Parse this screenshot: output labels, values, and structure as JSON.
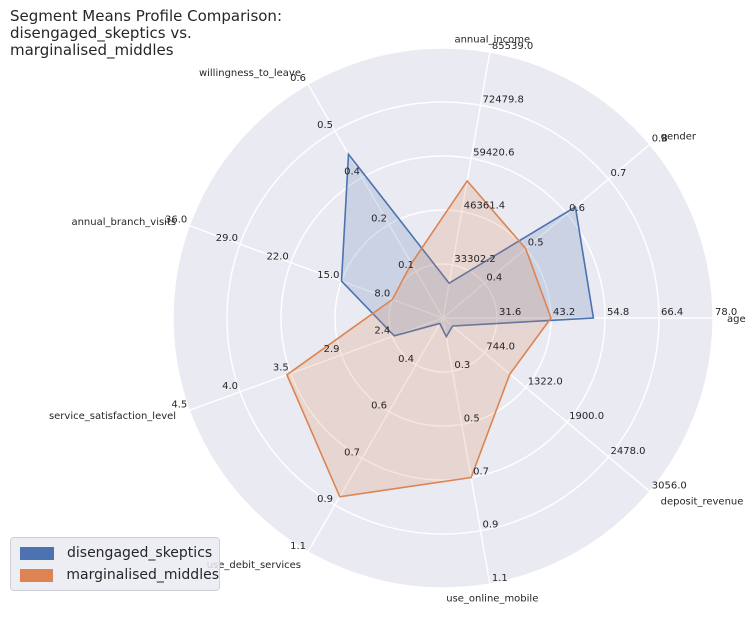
{
  "chart_data": {
    "type": "radar",
    "title": [
      "Segment Means Profile Comparison:",
      "disengaged_skeptics vs.",
      "marginalised_middles"
    ],
    "legend_position": "lower-left",
    "grid": true,
    "axes": [
      {
        "name": "age",
        "ticks": [
          "31.6",
          "43.2",
          "54.8",
          "66.4",
          "78.0"
        ],
        "range": [
          20,
          78
        ]
      },
      {
        "name": "gender",
        "ticks": [
          "0.4",
          "0.5",
          "0.6",
          "0.7",
          "0.8"
        ],
        "range": [
          0.3,
          0.8
        ]
      },
      {
        "name": "annual_income",
        "ticks": [
          "33302.2",
          "46361.4",
          "59420.6",
          "72479.8",
          "85539.0"
        ],
        "range": [
          20243,
          85539
        ]
      },
      {
        "name": "willingness_to_leave",
        "ticks": [
          "0.1",
          "0.2",
          "0.4",
          "0.5",
          "0.6"
        ],
        "range": [
          0.0,
          0.6
        ]
      },
      {
        "name": "annual_branch_visits",
        "ticks": [
          "8.0",
          "15.0",
          "22.0",
          "29.0",
          "36.0"
        ],
        "range": [
          1,
          36
        ]
      },
      {
        "name": "service_satisfaction_level",
        "ticks": [
          "2.4",
          "2.9",
          "3.5",
          "4.0",
          "4.5"
        ],
        "range": [
          1.9,
          4.5
        ]
      },
      {
        "name": "use_debit_services",
        "ticks": [
          "0.4",
          "0.6",
          "0.7",
          "0.9",
          "1.1"
        ],
        "range": [
          0.25,
          1.1
        ]
      },
      {
        "name": "use_online_mobile",
        "ticks": [
          "0.3",
          "0.5",
          "0.7",
          "0.9",
          "1.1"
        ],
        "range": [
          0.1,
          1.1
        ]
      },
      {
        "name": "deposit_revenue",
        "ticks": [
          "744.0",
          "1322.0",
          "1900.0",
          "2478.0",
          "3056.0"
        ],
        "range": [
          166,
          3056
        ]
      }
    ],
    "series": [
      {
        "name": "disengaged_skeptics",
        "color": "#4c72b0",
        "values": [
          52.3,
          0.62,
          28800,
          0.42,
          15.0,
          2.4,
          0.27,
          0.17,
          300
        ]
      },
      {
        "name": "marginalised_middles",
        "color": "#dd8452",
        "values": [
          43.2,
          0.5,
          53900,
          0.14,
          8.0,
          3.5,
          0.9,
          0.7,
          1100
        ]
      }
    ]
  }
}
